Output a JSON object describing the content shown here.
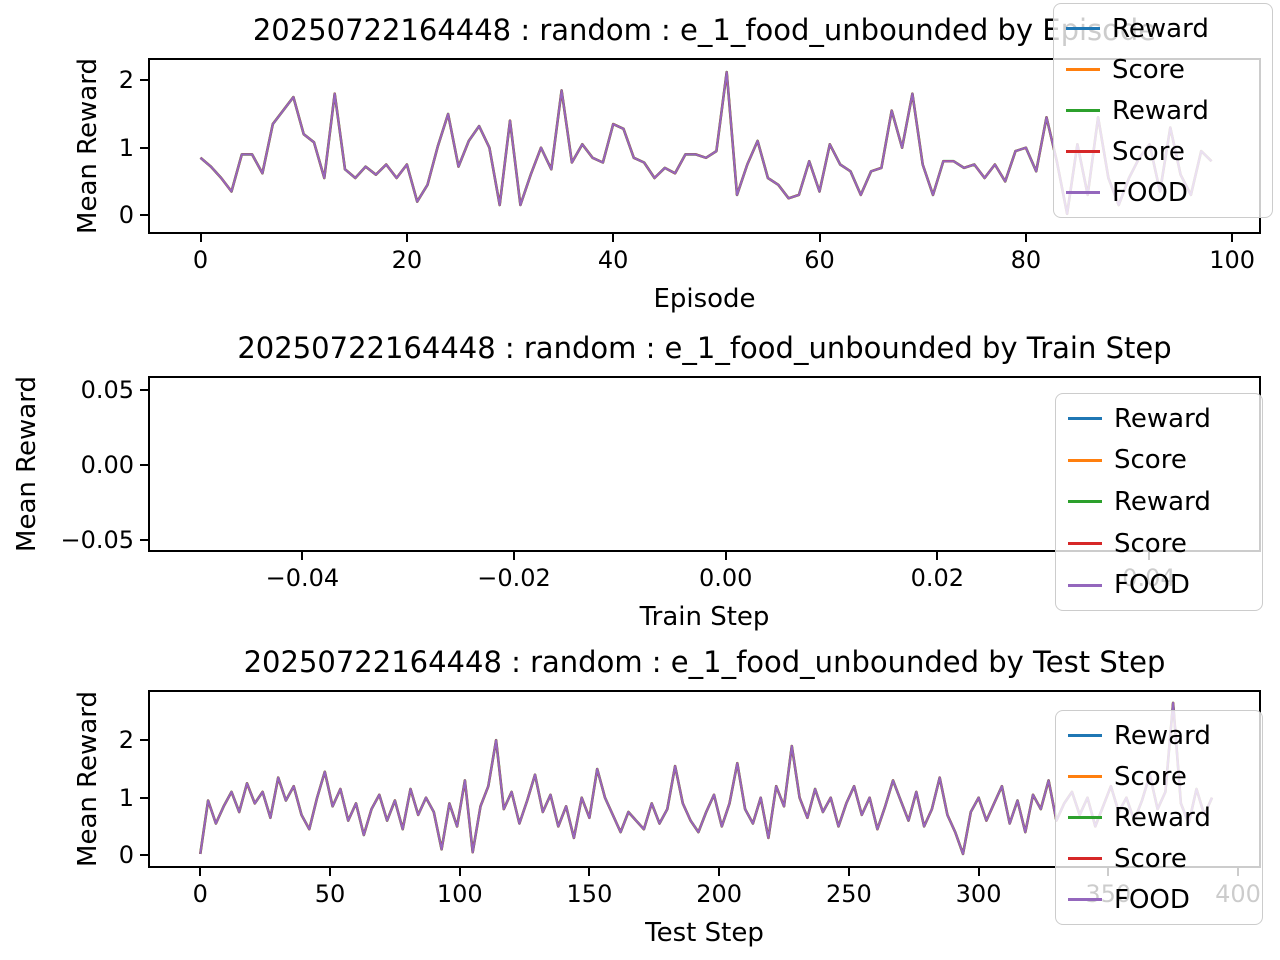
{
  "figure": {
    "background": "#ffffff",
    "text_color": "#000000",
    "note": "matplotlib-style figure, three stacked line subplots, all five series overlap exactly so only the purple FOOD line is visible"
  },
  "chart_data": [
    {
      "type": "line",
      "title": "20250722164448 : random : e_1_food_unbounded by Episode",
      "xlabel": "Episode",
      "ylabel": "Mean Reward",
      "grid": false,
      "legend_position": "upper right (overlapping title and plot)",
      "xlim": [
        -4.9,
        102.6
      ],
      "ylim": [
        -0.25,
        2.3
      ],
      "xticks": [
        {
          "value": 0,
          "label": "0"
        },
        {
          "value": 20,
          "label": "20"
        },
        {
          "value": 40,
          "label": "40"
        },
        {
          "value": 60,
          "label": "60"
        },
        {
          "value": 80,
          "label": "80"
        },
        {
          "value": 100,
          "label": "100"
        }
      ],
      "yticks": [
        {
          "value": 0,
          "label": "0"
        },
        {
          "value": 1,
          "label": "1"
        },
        {
          "value": 2,
          "label": "2"
        }
      ],
      "series": [
        {
          "name": "Reward",
          "color": "#1f77b4"
        },
        {
          "name": "Score",
          "color": "#ff7f0e"
        },
        {
          "name": "Reward",
          "color": "#2ca02c"
        },
        {
          "name": "Score",
          "color": "#d62728"
        },
        {
          "name": "FOOD",
          "color": "#9467bd"
        }
      ],
      "series_overlap": true,
      "x_start": 0,
      "x_step": 1,
      "y": [
        0.85,
        0.72,
        0.55,
        0.35,
        0.9,
        0.9,
        0.62,
        1.35,
        1.55,
        1.75,
        1.2,
        1.08,
        0.55,
        1.8,
        0.68,
        0.55,
        0.72,
        0.6,
        0.75,
        0.55,
        0.75,
        0.2,
        0.45,
        1.02,
        1.5,
        0.72,
        1.1,
        1.32,
        1.0,
        0.15,
        1.4,
        0.15,
        0.6,
        1.0,
        0.68,
        1.85,
        0.78,
        1.05,
        0.85,
        0.78,
        1.35,
        1.28,
        0.85,
        0.78,
        0.55,
        0.7,
        0.62,
        0.9,
        0.9,
        0.85,
        0.95,
        2.12,
        0.3,
        0.75,
        1.1,
        0.55,
        0.45,
        0.25,
        0.3,
        0.8,
        0.35,
        1.05,
        0.75,
        0.65,
        0.3,
        0.65,
        0.7,
        1.55,
        1.0,
        1.8,
        0.75,
        0.3,
        0.8,
        0.8,
        0.7,
        0.75,
        0.55,
        0.75,
        0.5,
        0.95,
        1.0,
        0.65,
        1.45,
        0.8,
        0.02,
        1.05,
        0.3,
        1.45,
        0.55,
        0.15,
        0.55,
        0.85,
        1.05,
        0.35,
        1.3,
        0.6,
        0.3,
        0.95,
        0.8
      ]
    },
    {
      "type": "line",
      "title": "20250722164448 : random : e_1_food_unbounded by Train Step",
      "xlabel": "Train Step",
      "ylabel": "Mean Reward",
      "grid": false,
      "legend_position": "right (overlapping lower right of plot)",
      "xlim": [
        -0.0544,
        0.0504
      ],
      "ylim": [
        -0.0567,
        0.058
      ],
      "xticks": [
        {
          "value": -0.04,
          "label": "−0.04"
        },
        {
          "value": -0.02,
          "label": "−0.02"
        },
        {
          "value": 0.0,
          "label": "0.00"
        },
        {
          "value": 0.02,
          "label": "0.02"
        },
        {
          "value": 0.04,
          "label": "0.04"
        }
      ],
      "yticks": [
        {
          "value": -0.05,
          "label": "−0.05"
        },
        {
          "value": 0.0,
          "label": "0.00"
        },
        {
          "value": 0.05,
          "label": "0.05"
        }
      ],
      "series": [
        {
          "name": "Reward",
          "color": "#1f77b4"
        },
        {
          "name": "Score",
          "color": "#ff7f0e"
        },
        {
          "name": "Reward",
          "color": "#2ca02c"
        },
        {
          "name": "Score",
          "color": "#d62728"
        },
        {
          "name": "FOOD",
          "color": "#9467bd"
        }
      ],
      "series_overlap": true,
      "x_start": 0,
      "x_step": 1,
      "y": []
    },
    {
      "type": "line",
      "title": "20250722164448 : random : e_1_food_unbounded by Test Step",
      "xlabel": "Test Step",
      "ylabel": "Mean Reward",
      "grid": false,
      "legend_position": "right (overlapping lower right of plot)",
      "xlim": [
        -19.4,
        408.1
      ],
      "ylim": [
        -0.19,
        2.84
      ],
      "xticks": [
        {
          "value": 0,
          "label": "0"
        },
        {
          "value": 50,
          "label": "50"
        },
        {
          "value": 100,
          "label": "100"
        },
        {
          "value": 150,
          "label": "150"
        },
        {
          "value": 200,
          "label": "200"
        },
        {
          "value": 250,
          "label": "250"
        },
        {
          "value": 300,
          "label": "300"
        },
        {
          "value": 350,
          "label": "350"
        },
        {
          "value": 400,
          "label": "400"
        }
      ],
      "yticks": [
        {
          "value": 0,
          "label": "0"
        },
        {
          "value": 1,
          "label": "1"
        },
        {
          "value": 2,
          "label": "2"
        }
      ],
      "series": [
        {
          "name": "Reward",
          "color": "#1f77b4"
        },
        {
          "name": "Score",
          "color": "#ff7f0e"
        },
        {
          "name": "Reward",
          "color": "#2ca02c"
        },
        {
          "name": "Score",
          "color": "#d62728"
        },
        {
          "name": "FOOD",
          "color": "#9467bd"
        }
      ],
      "series_overlap": true,
      "x_start": 0,
      "x_step": 3,
      "y": [
        0.02,
        0.95,
        0.55,
        0.85,
        1.1,
        0.75,
        1.25,
        0.9,
        1.1,
        0.65,
        1.35,
        0.95,
        1.2,
        0.7,
        0.45,
        1.0,
        1.45,
        0.85,
        1.15,
        0.6,
        0.9,
        0.35,
        0.8,
        1.05,
        0.6,
        0.95,
        0.45,
        1.15,
        0.7,
        1.0,
        0.75,
        0.1,
        0.9,
        0.5,
        1.3,
        0.05,
        0.85,
        1.2,
        2.0,
        0.8,
        1.1,
        0.55,
        0.95,
        1.4,
        0.75,
        1.05,
        0.5,
        0.85,
        0.3,
        1.0,
        0.65,
        1.5,
        1.0,
        0.7,
        0.4,
        0.75,
        0.6,
        0.45,
        0.9,
        0.55,
        0.8,
        1.55,
        0.9,
        0.6,
        0.4,
        0.75,
        1.05,
        0.5,
        0.9,
        1.6,
        0.8,
        0.55,
        1.0,
        0.3,
        1.2,
        0.85,
        1.9,
        1.0,
        0.65,
        1.15,
        0.75,
        1.0,
        0.5,
        0.9,
        1.2,
        0.7,
        1.0,
        0.45,
        0.85,
        1.3,
        0.95,
        0.6,
        1.1,
        0.5,
        0.8,
        1.35,
        0.7,
        0.4,
        0.02,
        0.75,
        1.0,
        0.6,
        0.9,
        1.2,
        0.55,
        0.95,
        0.4,
        1.05,
        0.8,
        1.3,
        0.6,
        0.9,
        1.1,
        0.7,
        1.0,
        0.5,
        0.85,
        1.2,
        0.75,
        1.0,
        0.6,
        0.95,
        1.4,
        0.8,
        1.1,
        2.65,
        0.9,
        0.55,
        1.15,
        0.7,
        1.0
      ]
    }
  ]
}
